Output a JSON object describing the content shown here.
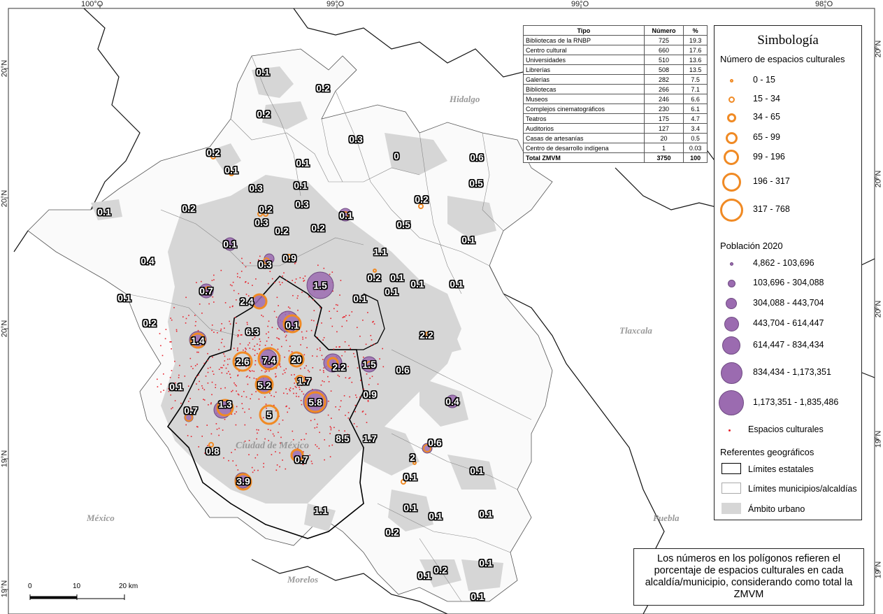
{
  "coordinates": {
    "top": [
      "100°O",
      "99°O",
      "99°O",
      "98°O"
    ],
    "left": [
      "20°N",
      "20°N",
      "20°N",
      "19°N",
      "19°N"
    ],
    "right": [
      "20°N",
      "20°N",
      "20°N",
      "19°N",
      "19°N"
    ]
  },
  "states": [
    "Hidalgo",
    "Tlaxcala",
    "México",
    "Puebla",
    "Morelos",
    "Ciudad de México"
  ],
  "table": {
    "headers": [
      "Tipo",
      "Número",
      "%"
    ],
    "rows": [
      [
        "Bibliotecas de la RNBP",
        "725",
        "19.3"
      ],
      [
        "Centro cultural",
        "660",
        "17.6"
      ],
      [
        "Universidades",
        "510",
        "13.6"
      ],
      [
        "Librerías",
        "508",
        "13.5"
      ],
      [
        "Galerías",
        "282",
        "7.5"
      ],
      [
        "Bibliotecas",
        "266",
        "7.1"
      ],
      [
        "Museos",
        "246",
        "6.6"
      ],
      [
        "Complejos cinematográficos",
        "230",
        "6.1"
      ],
      [
        "Teatros",
        "175",
        "4.7"
      ],
      [
        "Auditorios",
        "127",
        "3.4"
      ],
      [
        "Casas de artesanías",
        "20",
        "0.5"
      ],
      [
        "Centro de desarrollo indígena",
        "1",
        "0.03"
      ]
    ],
    "total": [
      "Total ZMVM",
      "3750",
      "100"
    ]
  },
  "legend": {
    "title": "Simbología",
    "cultural_heading": "Número de espacios culturales",
    "cultural_classes": [
      "0 - 15",
      "15 - 34",
      "34 - 65",
      "65 - 99",
      "99 - 196",
      "196 - 317",
      "317 - 768"
    ],
    "population_heading": "Población 2020",
    "population_classes": [
      "4,862 - 103,696",
      "103,696 - 304,088",
      "304,088 - 443,704",
      "443,704 - 614,447",
      "614,447 - 834,434",
      "834,434 - 1,173,351",
      "1,173,351 - 1,835,486"
    ],
    "points_label": "Espacios culturales",
    "referents_heading": "Referentes geográficos",
    "referents": [
      "Límites estatales",
      "Límites municipios/alcaldías",
      "Ámbito urbano"
    ],
    "colors": {
      "cultural": "#f08a24",
      "population": "#9b6bb0",
      "urban": "#d6d6d6",
      "points": "#e8202a"
    }
  },
  "note": "Los números en los polígonos refieren el porcentaje de espacios culturales en cada alcaldía/municipio, considerando como total la ZMVM",
  "scale": {
    "labels": [
      "0",
      "10",
      "20 km"
    ]
  },
  "percentages": [
    "0.1",
    "0.2",
    "0.2",
    "0.3",
    "0",
    "0.6",
    "0.2",
    "0.1",
    "0.1",
    "0.3",
    "0.1",
    "0.5",
    "0.2",
    "0.1",
    "0.2",
    "0.2",
    "0.3",
    "0.1",
    "0.3",
    "0.2",
    "0.2",
    "0.5",
    "0.1",
    "0.1",
    "1.1",
    "0.3",
    "0.9",
    "0.4",
    "0.2",
    "0.1",
    "0.1",
    "1.5",
    "0.1",
    "0.1",
    "0.1",
    "0.7",
    "2.4",
    "0.1",
    "0.2",
    "0.1",
    "6.3",
    "2.2",
    "1.4",
    "2.6",
    "7.4",
    "20",
    "2.2",
    "1.5",
    "0.6",
    "0.1",
    "1.7",
    "0.9",
    "5.2",
    "5.8",
    "0.4",
    "0.7",
    "1.3",
    "5",
    "8.5",
    "1.7",
    "0.6",
    "0.8",
    "0.7",
    "2",
    "0.1",
    "0.1",
    "3.9",
    "0.1",
    "0.1",
    "1.1",
    "0.1",
    "0.2",
    "0.1",
    "0.1",
    "0.2",
    "0.1",
    "0"
  ]
}
